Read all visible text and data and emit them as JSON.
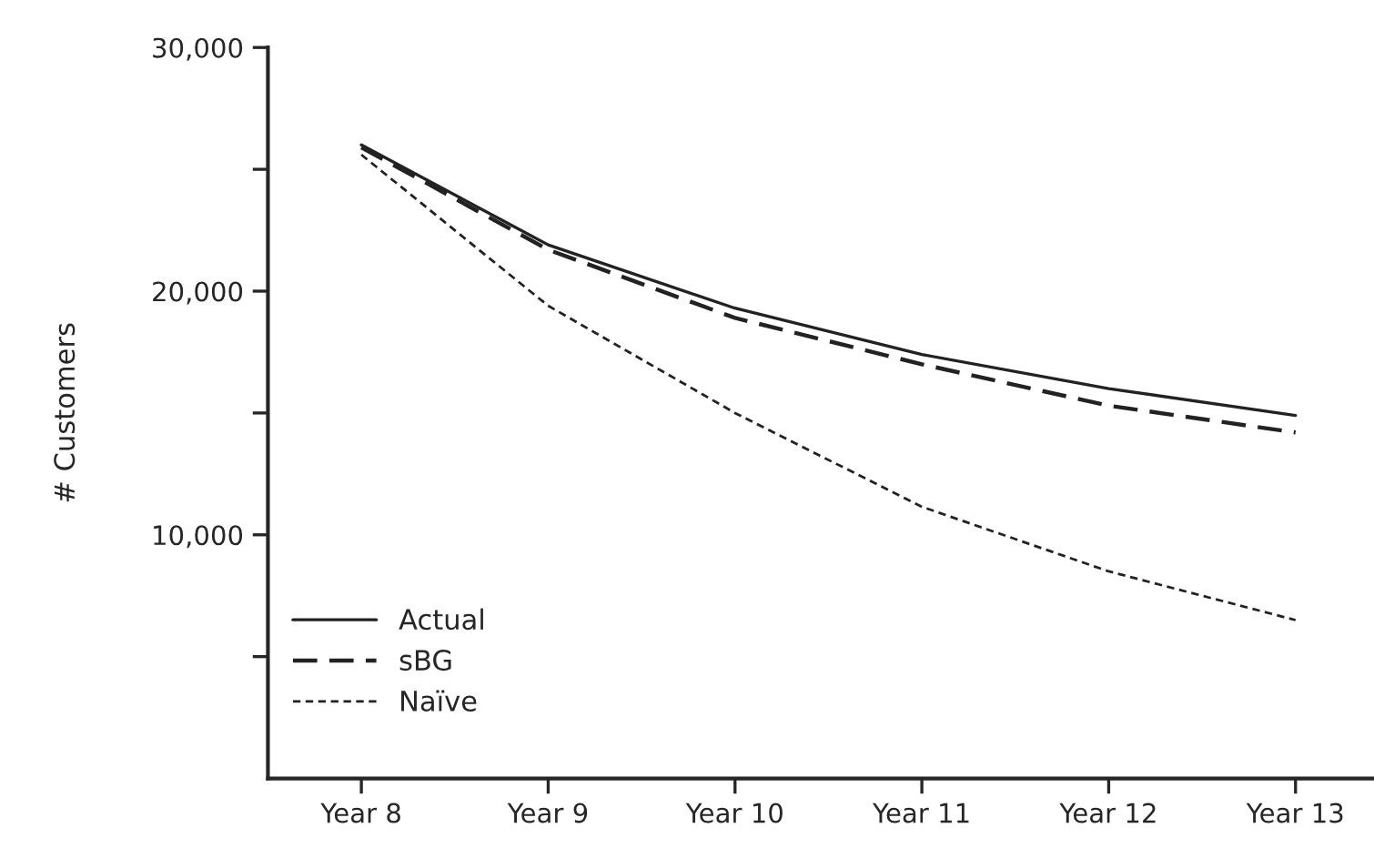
{
  "chart_data": {
    "type": "line",
    "ylabel": "# Customers",
    "categories": [
      "Year 8",
      "Year 9",
      "Year 10",
      "Year 11",
      "Year 12",
      "Year 13"
    ],
    "series": [
      {
        "name": "Actual",
        "color": "#222222",
        "line_style": "solid",
        "values": [
          26000,
          21900,
          19300,
          17400,
          16000,
          14900
        ]
      },
      {
        "name": "sBG",
        "color": "#222222",
        "line_style": "dashed",
        "values": [
          25900,
          21700,
          18900,
          17000,
          15300,
          14200
        ]
      },
      {
        "name": "Naïve",
        "color": "#222222",
        "line_style": "dotted",
        "values": [
          25600,
          19400,
          15000,
          11150,
          8500,
          6500
        ]
      }
    ],
    "ylim": [
      0,
      30000
    ],
    "yticks": [
      {
        "value": 5000,
        "label": null
      },
      {
        "value": 10000,
        "label": "10,000"
      },
      {
        "value": 15000,
        "label": null
      },
      {
        "value": 20000,
        "label": "20,000"
      },
      {
        "value": 25000,
        "label": null
      },
      {
        "value": 30000,
        "label": "30,000"
      }
    ],
    "grid": false,
    "legend": "bottom left",
    "marker": "none"
  }
}
